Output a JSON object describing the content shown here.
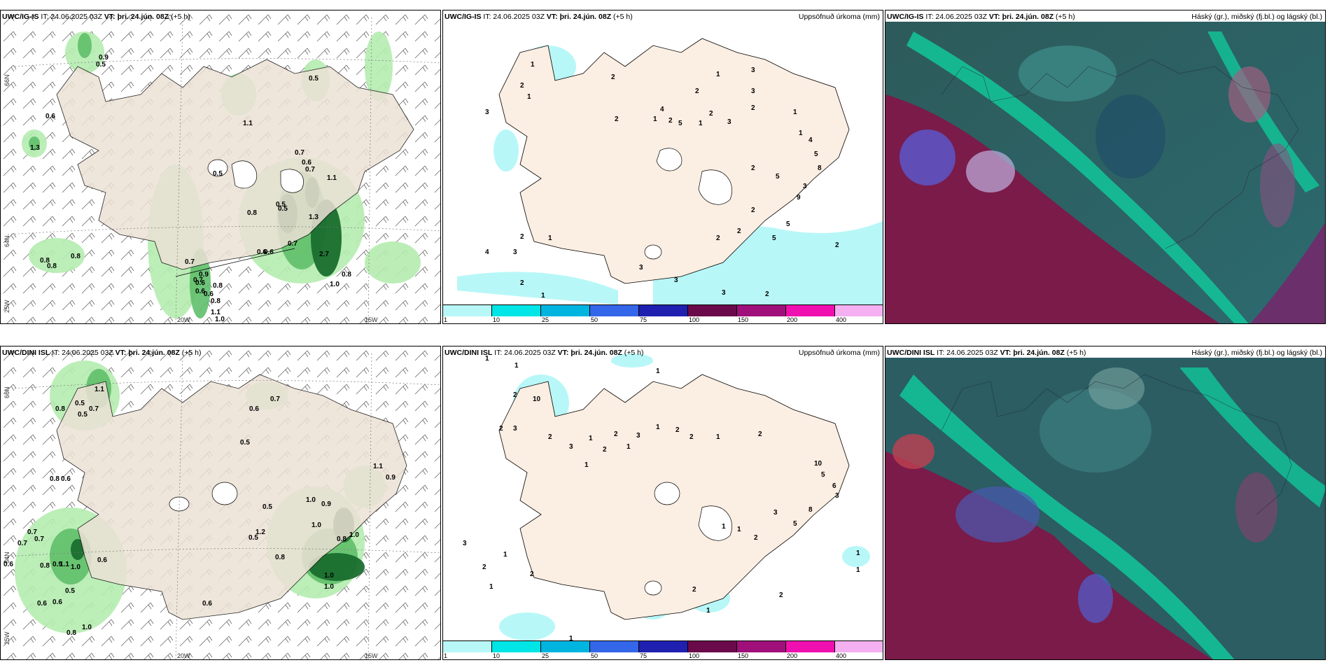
{
  "panels": [
    {
      "model": "UWC/IG-IS",
      "it": "IT: 24.06.2025 03Z",
      "vt_label": "VT:",
      "vt": "þri. 24.jún. 08Z",
      "lead": "(+5 h)",
      "title_right": ""
    },
    {
      "model": "UWC/IG-IS",
      "it": "IT: 24.06.2025 03Z",
      "vt_label": "VT:",
      "vt": "þri. 24.jún. 08Z",
      "lead": "(+5 h)",
      "title_right": "Uppsöfnuð úrkoma (mm)"
    },
    {
      "model": "UWC/IG-IS",
      "it": "IT: 24.06.2025 03Z",
      "vt_label": "VT:",
      "vt": "þri. 24.jún. 08Z",
      "lead": "(+5 h)",
      "title_right": "Háský (gr.), miðský (fj.bl.) og lágský (bl.)"
    },
    {
      "model": "UWC/DINI ISL",
      "it": "IT: 24.06.2025 03Z",
      "vt_label": "VT:",
      "vt": "þri. 24.jún. 08Z",
      "lead": "(+5 h)",
      "title_right": ""
    },
    {
      "model": "UWC/DINI ISL",
      "it": "IT: 24.06.2025 03Z",
      "vt_label": "VT:",
      "vt": "þri. 24.jún. 08Z",
      "lead": "(+5 h)",
      "title_right": "Uppsöfnuð úrkoma (mm)"
    },
    {
      "model": "UWC/DINI ISL",
      "it": "IT: 24.06.2025 03Z",
      "vt_label": "VT:",
      "vt": "þri. 24.jún. 08Z",
      "lead": "(+5 h)",
      "title_right": "Háský (gr.), miðský (fj.bl.) og lágský (bl.)"
    }
  ],
  "axis_labels": {
    "lat66": "66N",
    "lat64": "64N",
    "lat25": "25W",
    "lon20": "20W",
    "lon15": "15W"
  },
  "colorbar": {
    "ticks": [
      "1",
      "10",
      "25",
      "50",
      "75",
      "100",
      "150",
      "200",
      "400"
    ],
    "colors": [
      "#b8f7f7",
      "#00e5e5",
      "#00b4e0",
      "#3366e8",
      "#2020b0",
      "#6a0a4a",
      "#a0107a",
      "#f010b0",
      "#f4b0f0"
    ]
  },
  "wind_labels_ig": [
    "0.9",
    "0.5",
    "0.5",
    "0.6",
    "1.1",
    "1.3",
    "0.7",
    "0.6",
    "0.7",
    "0.5",
    "1.1",
    "0.8",
    "0.5",
    "1.3",
    "0.8",
    "0.8",
    "0.8",
    "0.7",
    "0.7",
    "0.6",
    "0.6",
    "0.6",
    "0.5",
    "2.7",
    "0.9",
    "0.7",
    "0.8",
    "0.6",
    "0.8",
    "1.0",
    "1.1",
    "1.0",
    "0.6",
    "0.8"
  ],
  "wind_labels_dini": [
    "1.1",
    "0.8",
    "0.5",
    "0.7",
    "0.5",
    "0.6",
    "0.7",
    "0.5",
    "0.8",
    "0.6",
    "0.7",
    "1.1",
    "0.9",
    "0.7",
    "0.7",
    "0.6",
    "0.8",
    "0.9",
    "1.1",
    "1.0",
    "0.6",
    "0.5",
    "0.6",
    "0.6",
    "0.8",
    "1.0",
    "0.9",
    "0.5",
    "1.2",
    "0.5",
    "0.8",
    "1.0",
    "1.0",
    "0.6",
    "1.0",
    "1.0",
    "0.8",
    "1.0"
  ],
  "precip_labels_ig": [
    "1",
    "2",
    "1",
    "3",
    "2",
    "2",
    "1",
    "2",
    "4",
    "2",
    "5",
    "1",
    "2",
    "3",
    "2",
    "1",
    "3",
    "1",
    "3",
    "1",
    "4",
    "5",
    "8",
    "9",
    "3",
    "5",
    "2",
    "2",
    "2",
    "3",
    "1",
    "2",
    "3",
    "4",
    "2",
    "1",
    "2",
    "5",
    "5",
    "3",
    "2",
    "2",
    "3"
  ],
  "precip_labels_dini": [
    "1",
    "1",
    "1",
    "2",
    "10",
    "2",
    "3",
    "2",
    "3",
    "1",
    "2",
    "3",
    "1",
    "2",
    "1",
    "2",
    "2",
    "1",
    "1",
    "2",
    "10",
    "5",
    "3",
    "6",
    "8",
    "3",
    "5",
    "2",
    "1",
    "1",
    "1",
    "3",
    "2",
    "1",
    "2",
    "2",
    "1",
    "2",
    "1",
    "1",
    "1"
  ]
}
